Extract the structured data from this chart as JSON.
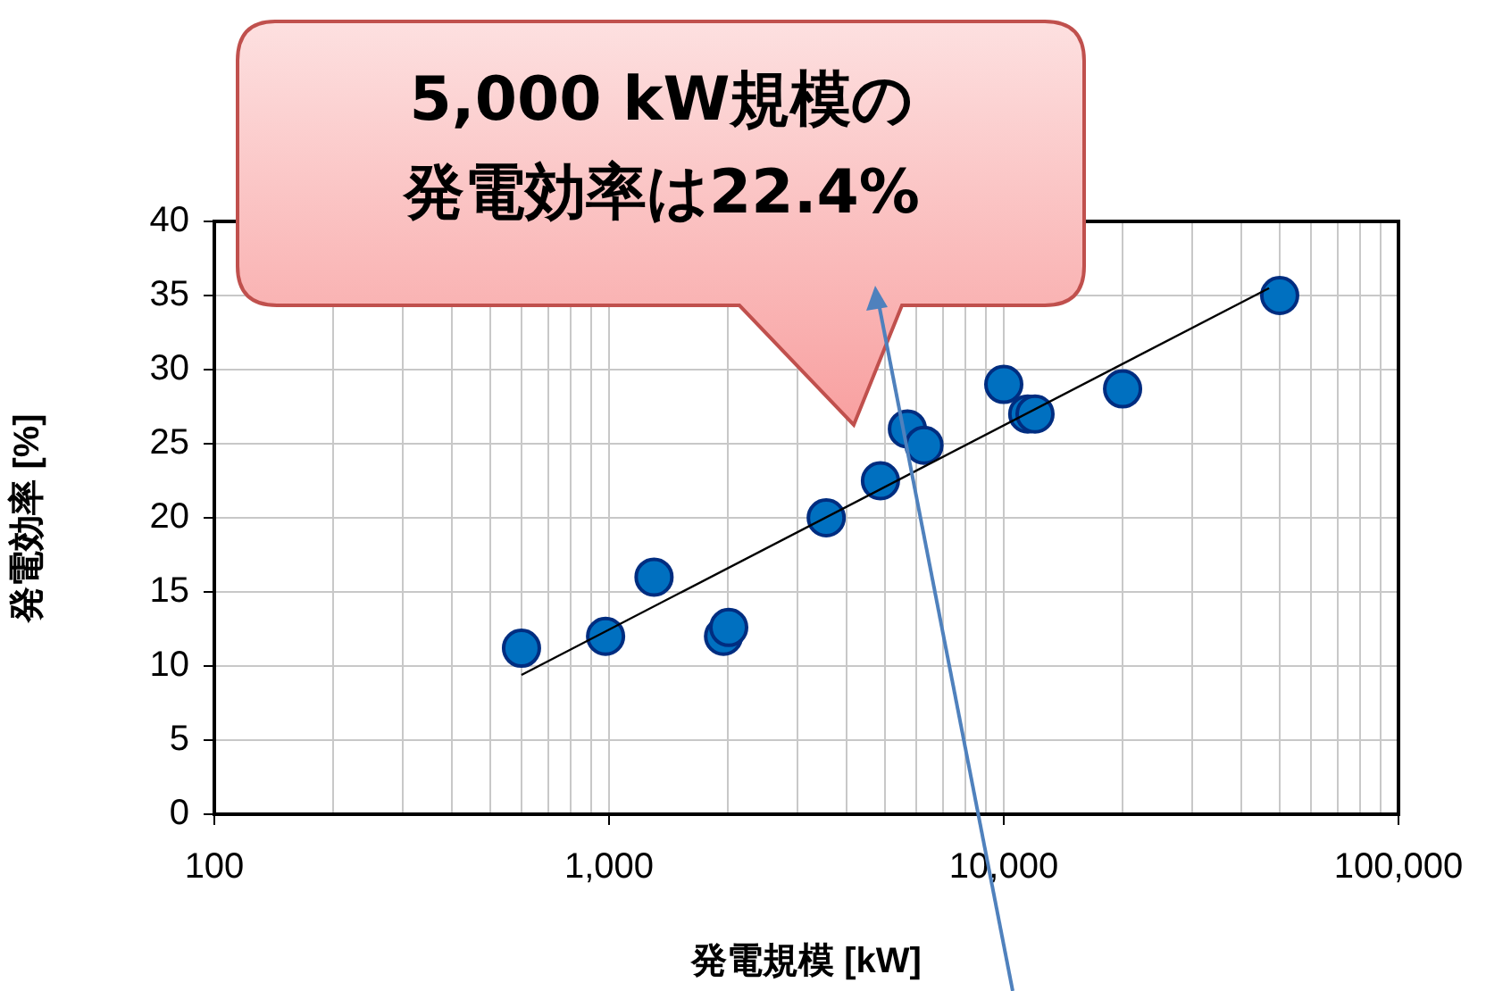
{
  "chart_data": {
    "type": "scatter",
    "xlabel": "発電規模 [kW]",
    "ylabel": "発電効率 [%]",
    "annotations": [
      "5,000 kW規模の",
      "発電効率は22.4%"
    ],
    "series": [
      {
        "type": "scatter",
        "color": "#0070c0",
        "x": [
          600,
          980,
          1300,
          1950,
          2010,
          3550,
          4870,
          5700,
          6280,
          10000,
          11500,
          12000,
          20000,
          50000
        ],
        "values": [
          11.2,
          12.0,
          16.0,
          12.0,
          12.6,
          20.0,
          22.5,
          26.0,
          24.9,
          29.0,
          27.0,
          27.0,
          28.7,
          35.0
        ]
      },
      {
        "type": "line",
        "color": "#000000",
        "marker": "none",
        "x": [
          600,
          47000
        ],
        "values": [
          9.4,
          35.5
        ]
      }
    ],
    "log": "x",
    "marker": "circle",
    "grid": true,
    "legend": false,
    "xlim": [
      100,
      100000
    ],
    "ylim": [
      0,
      40
    ],
    "xticks": [
      100,
      {
        "value": 200,
        "label": null
      },
      {
        "value": 300,
        "label": null
      },
      {
        "value": 400,
        "label": null
      },
      {
        "value": 500,
        "label": null
      },
      {
        "value": 600,
        "label": null
      },
      {
        "value": 700,
        "label": null
      },
      {
        "value": 800,
        "label": null
      },
      {
        "value": 900,
        "label": null
      },
      {
        "value": 1000,
        "label": "1,000"
      },
      {
        "value": 2000,
        "label": null
      },
      {
        "value": 3000,
        "label": null
      },
      {
        "value": 4000,
        "label": null
      },
      {
        "value": 5000,
        "label": null
      },
      {
        "value": 6000,
        "label": null
      },
      {
        "value": 7000,
        "label": null
      },
      {
        "value": 8000,
        "label": null
      },
      {
        "value": 9000,
        "label": null
      },
      {
        "value": 10000,
        "label": "10,000"
      },
      {
        "value": 20000,
        "label": null
      },
      {
        "value": 30000,
        "label": null
      },
      {
        "value": 40000,
        "label": null
      },
      {
        "value": 50000,
        "label": null
      },
      {
        "value": 60000,
        "label": null
      },
      {
        "value": 70000,
        "label": null
      },
      {
        "value": 80000,
        "label": null
      },
      {
        "value": 90000,
        "label": null
      },
      {
        "value": 100000,
        "label": "100,000"
      }
    ],
    "yticks": [
      0,
      5,
      10,
      15,
      20,
      25,
      30,
      35,
      40
    ]
  }
}
